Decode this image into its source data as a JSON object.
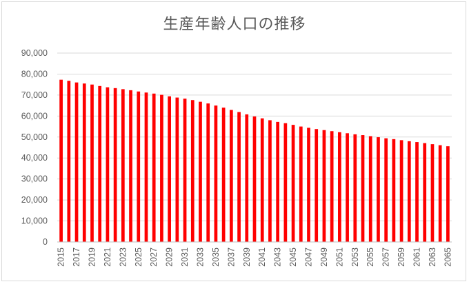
{
  "chart_data": {
    "type": "bar",
    "title": "生産年齢人口の推移",
    "xlabel": "",
    "ylabel": "",
    "ylim": [
      0,
      90000
    ],
    "yticks": [
      "0",
      "10,000",
      "20,000",
      "30,000",
      "40,000",
      "50,000",
      "60,000",
      "70,000",
      "80,000",
      "90,000"
    ],
    "grid": true,
    "legend": "none",
    "bar_color": "#ff0000",
    "categories": [
      "2015",
      "2016",
      "2017",
      "2018",
      "2019",
      "2020",
      "2021",
      "2022",
      "2023",
      "2024",
      "2025",
      "2026",
      "2027",
      "2028",
      "2029",
      "2030",
      "2031",
      "2032",
      "2033",
      "2034",
      "2035",
      "2036",
      "2037",
      "2038",
      "2039",
      "2040",
      "2041",
      "2042",
      "2043",
      "2044",
      "2045",
      "2046",
      "2047",
      "2048",
      "2049",
      "2050",
      "2051",
      "2052",
      "2053",
      "2054",
      "2055",
      "2056",
      "2057",
      "2058",
      "2059",
      "2060",
      "2061",
      "2062",
      "2063",
      "2064",
      "2065"
    ],
    "xtick_labels": [
      "2015",
      "2017",
      "2019",
      "2021",
      "2023",
      "2025",
      "2027",
      "2029",
      "2031",
      "2033",
      "2035",
      "2037",
      "2039",
      "2041",
      "2043",
      "2045",
      "2047",
      "2049",
      "2051",
      "2053",
      "2055",
      "2057",
      "2059",
      "2061",
      "2063",
      "2065"
    ],
    "values": [
      77300,
      76800,
      76000,
      75500,
      75000,
      74300,
      73700,
      73300,
      72800,
      72300,
      71700,
      71200,
      70700,
      70100,
      69400,
      68800,
      68300,
      67600,
      66800,
      66000,
      65000,
      64000,
      62900,
      61900,
      60800,
      59800,
      58900,
      58000,
      57200,
      56600,
      55800,
      55000,
      54400,
      53800,
      53300,
      52800,
      52300,
      51800,
      51300,
      50900,
      50400,
      49900,
      49400,
      49000,
      48500,
      48000,
      47600,
      47100,
      46600,
      46100,
      45600
    ]
  }
}
